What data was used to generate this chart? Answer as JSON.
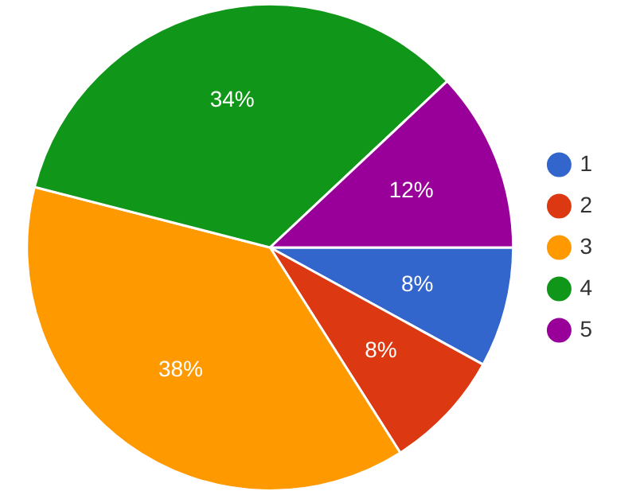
{
  "chart_data": {
    "type": "pie",
    "categories": [
      "1",
      "2",
      "3",
      "4",
      "5"
    ],
    "values": [
      8,
      8,
      38,
      34,
      12
    ],
    "colors": [
      "#3366cc",
      "#dc3912",
      "#ff9900",
      "#109618",
      "#990099"
    ],
    "value_labels": [
      "8%",
      "8%",
      "38%",
      "34%",
      "12%"
    ],
    "legend": "right"
  }
}
